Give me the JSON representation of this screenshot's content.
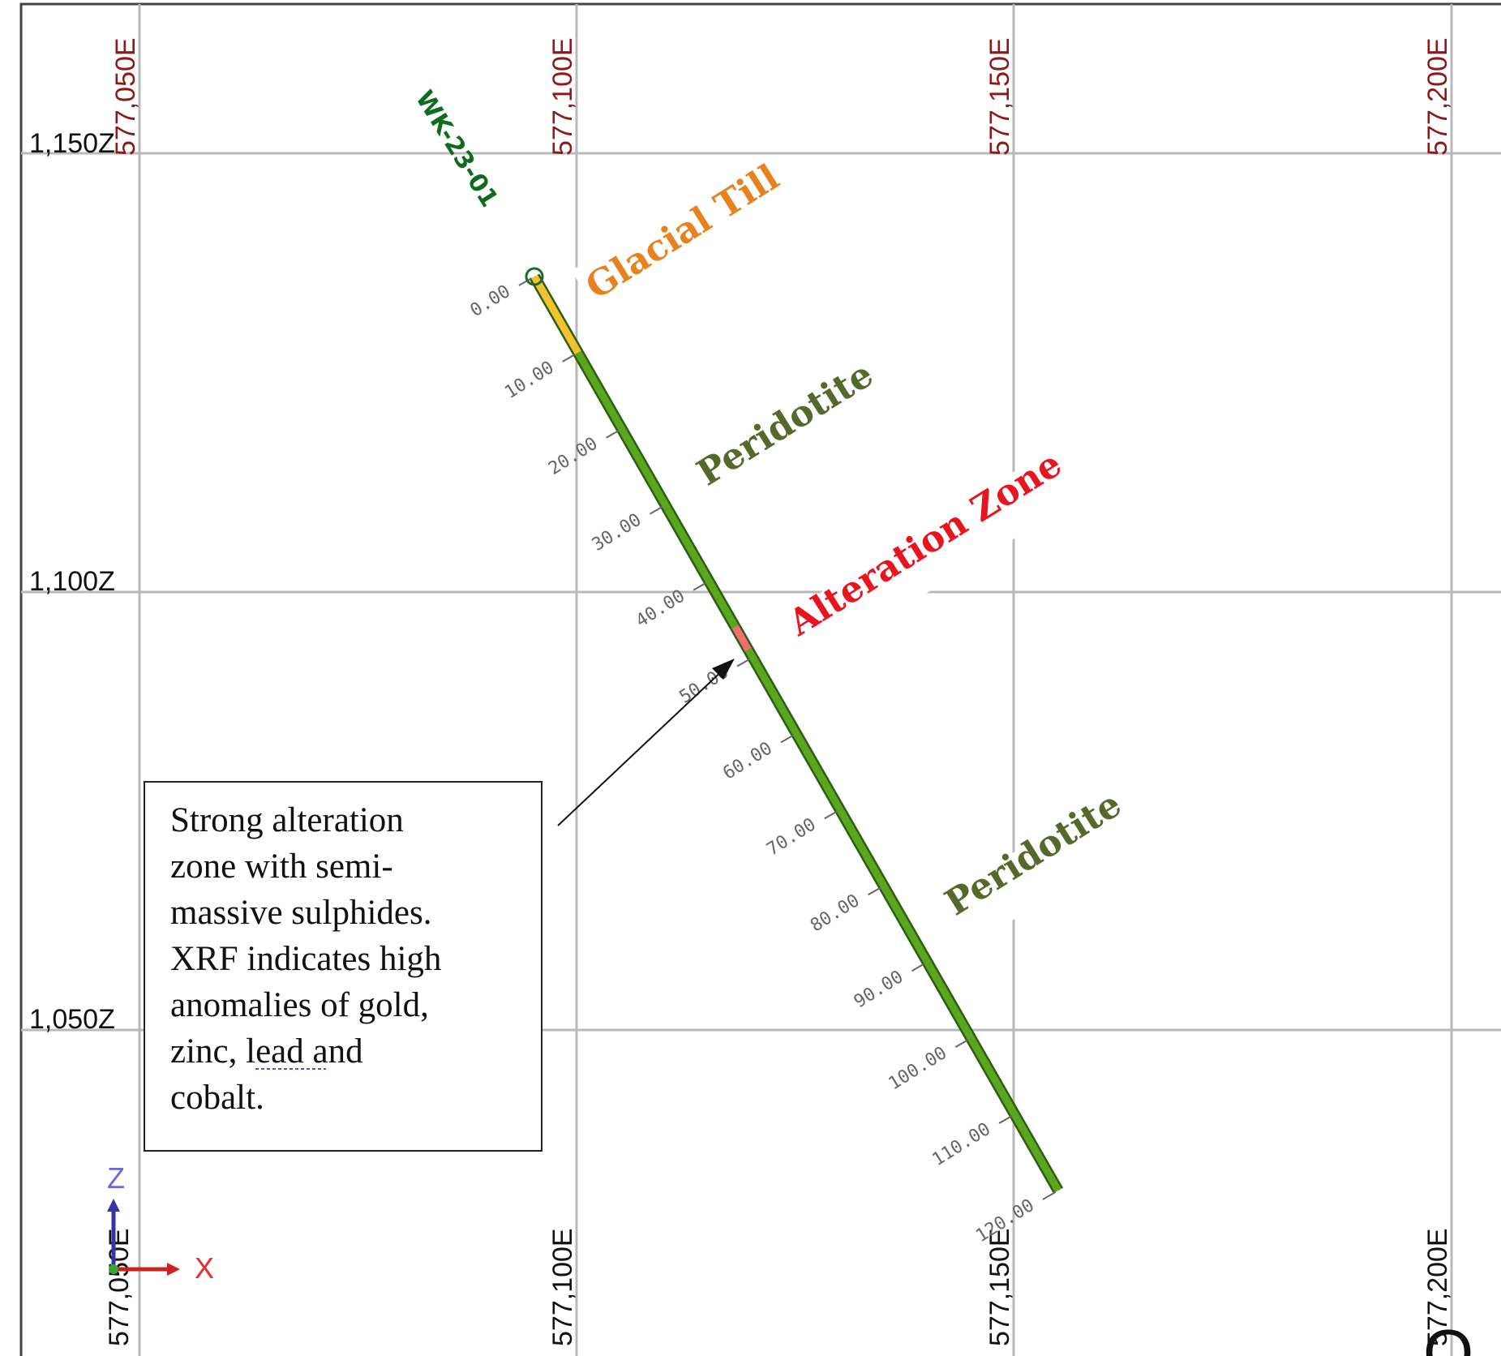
{
  "section": {
    "hole_id": "WK-23-01",
    "eastings_top": [
      "577,050E",
      "577,100E",
      "577,150E",
      "577,200E"
    ],
    "eastings_bottom": [
      "577,050E",
      "577,100E",
      "577,150E",
      "577,200E"
    ],
    "elevations": [
      "1,150Z",
      "1,100Z",
      "1,050Z"
    ],
    "depth_ticks": [
      "0.00",
      "10.00",
      "20.00",
      "30.00",
      "40.00",
      "50.00",
      "60.00",
      "70.00",
      "80.00",
      "90.00",
      "100.00",
      "110.00",
      "120.00"
    ],
    "intervals": [
      {
        "from": 0,
        "to": 10,
        "unit": "Glacial Till",
        "color": "#f2c230"
      },
      {
        "from": 10,
        "to": 46,
        "unit": "Peridotite",
        "color": "#5aa61e"
      },
      {
        "from": 46,
        "to": 49,
        "unit": "Alteration Zone",
        "color": "#f07070"
      },
      {
        "from": 49,
        "to": 120,
        "unit": "Peridotite",
        "color": "#5aa61e"
      }
    ],
    "unit_labels": [
      {
        "text": "Glacial Till",
        "color": "#e8821e"
      },
      {
        "text": "Peridotite",
        "color": "#55692a"
      },
      {
        "text": "Alteration Zone",
        "color": "#e8141e"
      },
      {
        "text": "Peridotite",
        "color": "#55692a"
      }
    ],
    "callout": {
      "lines": [
        "Strong alteration",
        "zone with semi-",
        "massive sulphides.",
        "XRF indicates high",
        "anomalies of gold,",
        "zinc, lead and",
        "cobalt."
      ]
    },
    "axis_indicator": {
      "z": "Z",
      "x": "X"
    },
    "colors": {
      "hole_label": "#0f6b1e",
      "grid": "#b9b9b9",
      "top_easting": "#8b1a1a"
    }
  }
}
